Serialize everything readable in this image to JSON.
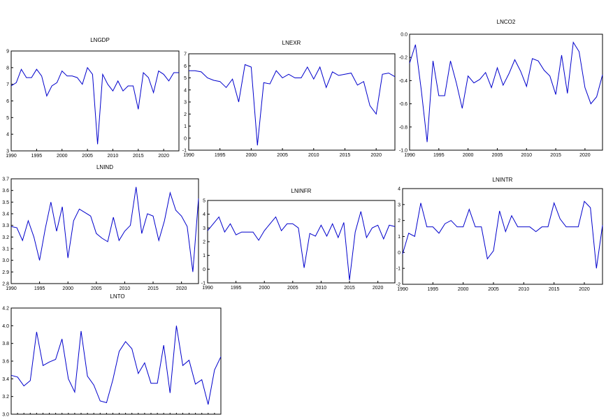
{
  "chart_data": [
    {
      "type": "line",
      "title": "LNGDP",
      "xlabel": "",
      "ylabel": "",
      "xlim": [
        1990,
        2023
      ],
      "ylim": [
        3,
        9
      ],
      "xticks": [
        1990,
        1995,
        2000,
        2005,
        2010,
        2015,
        2020
      ],
      "yticks": [
        3,
        4,
        5,
        6,
        7,
        8,
        9
      ],
      "x": [
        1990,
        1991,
        1992,
        1993,
        1994,
        1995,
        1996,
        1997,
        1998,
        1999,
        2000,
        2001,
        2002,
        2003,
        2004,
        2005,
        2006,
        2007,
        2008,
        2009,
        2010,
        2011,
        2012,
        2013,
        2014,
        2015,
        2016,
        2017,
        2018,
        2019,
        2020,
        2021,
        2022,
        2023
      ],
      "series": [
        {
          "values": [
            6.9,
            7.1,
            7.9,
            7.4,
            7.4,
            7.9,
            7.5,
            6.3,
            6.9,
            7.1,
            7.8,
            7.5,
            7.5,
            7.4,
            7.0,
            8.0,
            7.6,
            3.4,
            7.6,
            7.0,
            6.6,
            7.2,
            6.6,
            6.9,
            6.9,
            5.5,
            7.7,
            7.4,
            6.5,
            7.8,
            7.6,
            7.2,
            7.7,
            7.7
          ]
        }
      ]
    },
    {
      "type": "line",
      "title": "LNEXR",
      "xlabel": "",
      "ylabel": "",
      "xlim": [
        1990,
        2023
      ],
      "ylim": [
        -1,
        7
      ],
      "xticks": [
        1990,
        1995,
        2000,
        2005,
        2010,
        2015,
        2020
      ],
      "yticks": [
        -1,
        0,
        1,
        2,
        3,
        4,
        5,
        6,
        7
      ],
      "x": [
        1990,
        1991,
        1992,
        1993,
        1994,
        1995,
        1996,
        1997,
        1998,
        1999,
        2000,
        2001,
        2002,
        2003,
        2004,
        2005,
        2006,
        2007,
        2008,
        2009,
        2010,
        2011,
        2012,
        2013,
        2014,
        2015,
        2016,
        2017,
        2018,
        2019,
        2020,
        2021,
        2022,
        2023
      ],
      "series": [
        {
          "values": [
            5.6,
            5.6,
            5.5,
            5.0,
            4.8,
            4.7,
            4.2,
            4.9,
            3.0,
            6.1,
            5.9,
            -0.6,
            4.6,
            4.5,
            5.6,
            5.0,
            5.3,
            5.0,
            5.0,
            5.9,
            4.9,
            5.9,
            4.2,
            5.5,
            5.2,
            5.3,
            5.4,
            4.4,
            4.7,
            2.7,
            2.0,
            5.3,
            5.4,
            5.1
          ]
        }
      ]
    },
    {
      "type": "line",
      "title": "LNCO2",
      "xlabel": "",
      "ylabel": "",
      "xlim": [
        1990,
        2023
      ],
      "ylim": [
        -1.0,
        0.0
      ],
      "xticks": [
        1990,
        1995,
        2000,
        2005,
        2010,
        2015,
        2020
      ],
      "yticks": [
        -1.0,
        -0.8,
        -0.6,
        -0.4,
        -0.2,
        0.0
      ],
      "x": [
        1990,
        1991,
        1992,
        1993,
        1994,
        1995,
        1996,
        1997,
        1998,
        1999,
        2000,
        2001,
        2002,
        2003,
        2004,
        2005,
        2006,
        2007,
        2008,
        2009,
        2010,
        2011,
        2012,
        2013,
        2014,
        2015,
        2016,
        2017,
        2018,
        2019,
        2020,
        2021,
        2022,
        2023
      ],
      "series": [
        {
          "values": [
            -0.25,
            -0.09,
            -0.48,
            -0.93,
            -0.23,
            -0.53,
            -0.53,
            -0.23,
            -0.42,
            -0.64,
            -0.36,
            -0.42,
            -0.39,
            -0.33,
            -0.46,
            -0.29,
            -0.44,
            -0.34,
            -0.22,
            -0.32,
            -0.45,
            -0.21,
            -0.23,
            -0.31,
            -0.36,
            -0.52,
            -0.18,
            -0.51,
            -0.07,
            -0.15,
            -0.46,
            -0.6,
            -0.54,
            -0.35
          ]
        }
      ]
    },
    {
      "type": "line",
      "title": "LNIND",
      "xlabel": "",
      "ylabel": "",
      "xlim": [
        1990,
        2023
      ],
      "ylim": [
        2.8,
        3.7
      ],
      "xticks": [
        1990,
        1995,
        2000,
        2005,
        2010,
        2015,
        2020
      ],
      "yticks": [
        2.8,
        2.9,
        3.0,
        3.1,
        3.2,
        3.3,
        3.4,
        3.5,
        3.6,
        3.7
      ],
      "x": [
        1990,
        1991,
        1992,
        1993,
        1994,
        1995,
        1996,
        1997,
        1998,
        1999,
        2000,
        2001,
        2002,
        2003,
        2004,
        2005,
        2006,
        2007,
        2008,
        2009,
        2010,
        2011,
        2012,
        2013,
        2014,
        2015,
        2016,
        2017,
        2018,
        2019,
        2020,
        2021,
        2022,
        2023
      ],
      "series": [
        {
          "values": [
            3.29,
            3.28,
            3.17,
            3.34,
            3.2,
            3.0,
            3.27,
            3.5,
            3.25,
            3.46,
            3.02,
            3.34,
            3.44,
            3.41,
            3.38,
            3.23,
            3.19,
            3.16,
            3.37,
            3.17,
            3.25,
            3.3,
            3.63,
            3.23,
            3.4,
            3.38,
            3.17,
            3.34,
            3.58,
            3.43,
            3.38,
            3.29,
            2.9,
            3.53
          ]
        }
      ]
    },
    {
      "type": "line",
      "title": "LNINFR",
      "xlabel": "",
      "ylabel": "",
      "xlim": [
        1990,
        2023
      ],
      "ylim": [
        -1,
        5
      ],
      "xticks": [
        1990,
        1995,
        2000,
        2005,
        2010,
        2015,
        2020
      ],
      "yticks": [
        -1,
        0,
        1,
        2,
        3,
        4,
        5
      ],
      "x": [
        1990,
        1991,
        1992,
        1993,
        1994,
        1995,
        1996,
        1997,
        1998,
        1999,
        2000,
        2001,
        2002,
        2003,
        2004,
        2005,
        2006,
        2007,
        2008,
        2009,
        2010,
        2011,
        2012,
        2013,
        2014,
        2015,
        2016,
        2017,
        2018,
        2019,
        2020,
        2021,
        2022,
        2023
      ],
      "series": [
        {
          "values": [
            2.8,
            3.3,
            3.8,
            2.7,
            3.3,
            2.5,
            2.7,
            2.7,
            2.7,
            2.1,
            2.8,
            3.3,
            3.8,
            2.8,
            3.3,
            3.3,
            3.0,
            0.1,
            2.6,
            2.4,
            3.2,
            2.4,
            3.3,
            2.3,
            3.4,
            -0.8,
            2.7,
            4.2,
            2.3,
            3.0,
            3.2,
            2.2,
            3.2,
            3.1
          ]
        }
      ]
    },
    {
      "type": "line",
      "title": "LNINTR",
      "xlabel": "",
      "ylabel": "",
      "xlim": [
        1990,
        2023
      ],
      "ylim": [
        -2,
        4
      ],
      "xticks": [
        1990,
        1995,
        2000,
        2005,
        2010,
        2015,
        2020
      ],
      "yticks": [
        -2,
        -1,
        0,
        1,
        2,
        3,
        4
      ],
      "x": [
        1990,
        1991,
        1992,
        1993,
        1994,
        1995,
        1996,
        1997,
        1998,
        1999,
        2000,
        2001,
        2002,
        2003,
        2004,
        2005,
        2006,
        2007,
        2008,
        2009,
        2010,
        2011,
        2012,
        2013,
        2014,
        2015,
        2016,
        2017,
        2018,
        2019,
        2020,
        2021,
        2022,
        2023
      ],
      "series": [
        {
          "values": [
            -0.1,
            1.2,
            1.0,
            3.1,
            1.6,
            1.6,
            1.2,
            1.8,
            2.0,
            1.6,
            1.6,
            2.7,
            1.6,
            1.6,
            -0.4,
            0.1,
            2.6,
            1.3,
            2.3,
            1.6,
            1.6,
            1.6,
            1.3,
            1.6,
            1.6,
            3.1,
            2.1,
            1.6,
            1.6,
            1.6,
            3.2,
            2.8,
            -1.0,
            1.7
          ]
        }
      ]
    },
    {
      "type": "line",
      "title": "LNTO",
      "xlabel": "",
      "ylabel": "",
      "xlim": [
        1990,
        2023
      ],
      "ylim": [
        3.0,
        4.2
      ],
      "xticks": [],
      "yticks": [
        3.0,
        3.2,
        3.4,
        3.6,
        3.8,
        4.0,
        4.2
      ],
      "x": [
        1990,
        1991,
        1992,
        1993,
        1994,
        1995,
        1996,
        1997,
        1998,
        1999,
        2000,
        2001,
        2002,
        2003,
        2004,
        2005,
        2006,
        2007,
        2008,
        2009,
        2010,
        2011,
        2012,
        2013,
        2014,
        2015,
        2016,
        2017,
        2018,
        2019,
        2020,
        2021,
        2022,
        2023
      ],
      "series": [
        {
          "values": [
            3.44,
            3.42,
            3.32,
            3.38,
            3.93,
            3.55,
            3.59,
            3.62,
            3.85,
            3.4,
            3.25,
            3.94,
            3.43,
            3.33,
            3.15,
            3.13,
            3.39,
            3.71,
            3.82,
            3.74,
            3.46,
            3.58,
            3.35,
            3.35,
            3.78,
            3.24,
            4.0,
            3.55,
            3.61,
            3.34,
            3.39,
            3.11,
            3.5,
            3.65
          ]
        }
      ]
    }
  ]
}
